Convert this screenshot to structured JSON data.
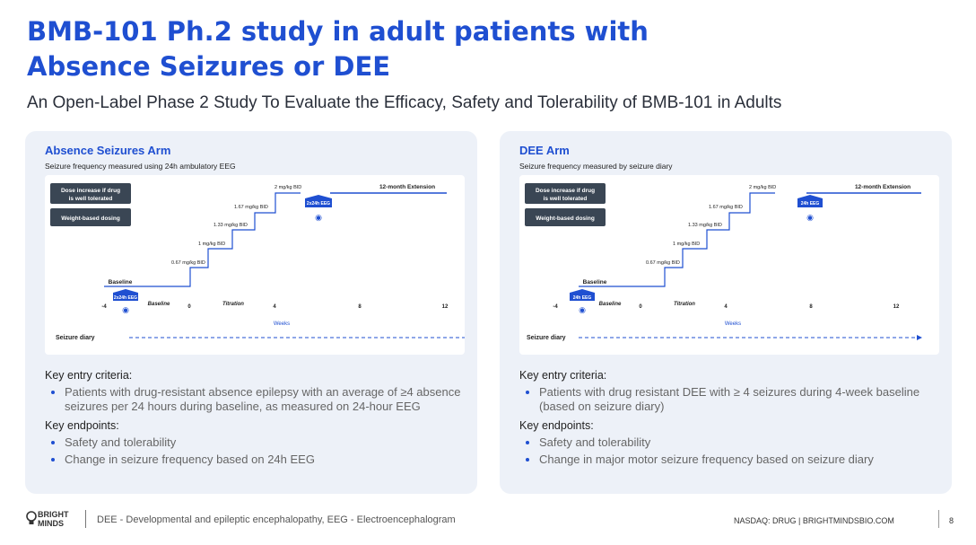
{
  "page": {
    "title": "BMB-101 Ph.2 study in adult patients with Absence Seizures or DEE",
    "subtitle": "An Open-Label Phase 2 Study To Evaluate the Efficacy, Safety and Tolerability of BMB-101 in Adults"
  },
  "common": {
    "dose_increase": [
      "Dose increase if drug",
      "is well tolerated"
    ],
    "weight_dosing": "Weight-based dosing",
    "baseline": "Baseline",
    "baseline_label": "Baseline",
    "titration": "Titration",
    "weeks": "Weeks",
    "ticks": [
      "-4",
      "0",
      "4",
      "8",
      "12"
    ],
    "doses": [
      "0.67 mg/kg BID",
      "1 mg/kg BID",
      "1.33 mg/kg BID",
      "1.67 mg/kg BID",
      "2 mg/kg BID"
    ],
    "extension": "12-month Extension",
    "seizure_diary": "Seizure diary"
  },
  "absence": {
    "title": "Absence Seizures Arm",
    "subtitle": "Seizure frequency measured using 24h ambulatory EEG",
    "eeg_baseline": "2x24h EEG",
    "eeg_followup": "2x24h EEG",
    "criteria_head": "Key entry criteria:",
    "criteria": [
      "Patients with drug-resistant absence epilepsy with an average of ≥4 absence seizures per 24 hours during baseline, as measured on 24-hour EEG"
    ],
    "endpoints_head": "Key endpoints:",
    "endpoints": [
      "Safety and tolerability",
      "Change in seizure frequency based on 24h EEG"
    ]
  },
  "dee": {
    "title": "DEE Arm",
    "subtitle": "Seizure frequency measured by seizure diary",
    "eeg_baseline": "24h EEG",
    "eeg_followup": "24h EEG",
    "criteria_head": "Key entry criteria:",
    "criteria": [
      "Patients with drug resistant DEE with ≥ 4 seizures during 4-week baseline (based on seizure diary)"
    ],
    "endpoints_head": "Key endpoints:",
    "endpoints": [
      "Safety and tolerability",
      "Change in major motor seizure frequency based on seizure diary"
    ]
  },
  "footer": {
    "logo_line1": "BRIGHT",
    "logo_line2": "MINDS",
    "note": "DEE - Developmental and epileptic encephalopathy, EEG - Electroencephalogram",
    "right": "NASDAQ: DRUG | BRIGHTMINDSBIO.COM",
    "page": "8"
  },
  "colors": {
    "accent": "#1f4fd1",
    "dark_box": "#3a4654",
    "panel": "#edf1f8"
  }
}
